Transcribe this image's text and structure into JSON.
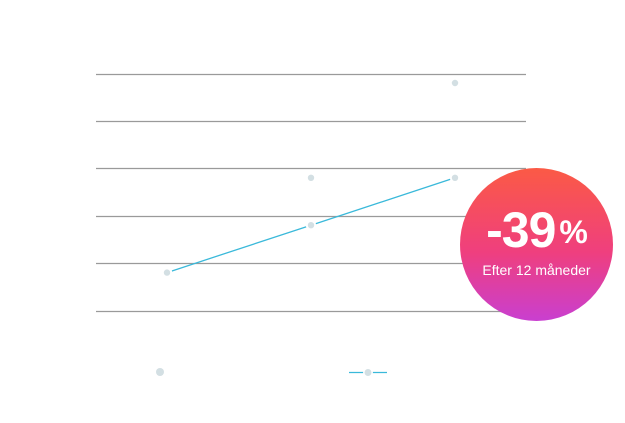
{
  "chart_data": {
    "type": "line",
    "categories": [
      "",
      "",
      ""
    ],
    "series": [
      {
        "values": [
          1,
          2,
          3
        ]
      },
      {
        "values": [
          1,
          3,
          5
        ]
      }
    ],
    "ylim": [
      0,
      5.4
    ],
    "grid": true,
    "colors": {
      "line": "#3ab9da",
      "point": "#d3dfe3",
      "grid": "#9a9a9a"
    }
  },
  "badge": {
    "value": "-39",
    "unit": "%",
    "caption": "Efter 12 måneder",
    "gradient_top": "#fb5a45",
    "gradient_bottom": "#c93fd0"
  }
}
